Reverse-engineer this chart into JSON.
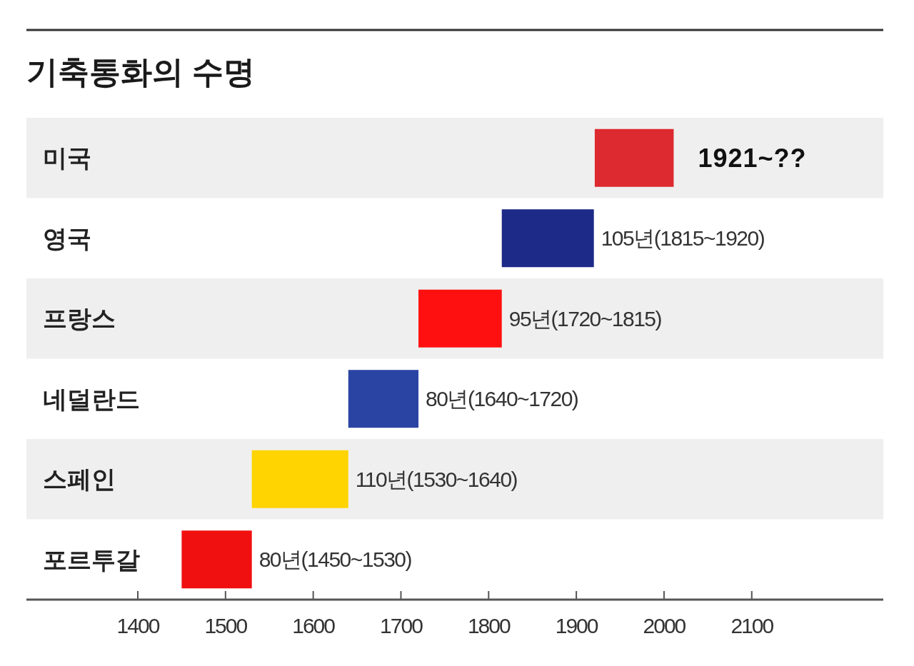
{
  "chart_data": {
    "type": "bar",
    "orientation": "horizontal",
    "title": "기축통화의 수명",
    "categories": [
      "미국",
      "영국",
      "프랑스",
      "네덜란드",
      "스페인",
      "포르투갈"
    ],
    "base": [
      1921,
      1815,
      1720,
      1640,
      1530,
      1450
    ],
    "values": [
      90,
      105,
      95,
      80,
      110,
      80
    ],
    "colors": [
      "#dd2a30",
      "#1d2a87",
      "#ff1010",
      "#2a44a3",
      "#ffd400",
      "#f01010"
    ],
    "value_labels": [
      null,
      "105년(1815~1920)",
      "95년(1720~1815)",
      "80년(1640~1720)",
      "110년(1530~1640)",
      "80년(1450~1530)"
    ],
    "annotations": [
      {
        "text": "1921~??",
        "x": 2011,
        "y": "미국"
      }
    ],
    "xlim": [
      1273,
      2250
    ],
    "xticks": [
      1400,
      1500,
      1600,
      1700,
      1800,
      1900,
      2000,
      2100
    ],
    "bands": [
      {
        "axis": "y",
        "from": "미국",
        "to": "미국",
        "color": "#efefef"
      },
      {
        "axis": "y",
        "from": "프랑스",
        "to": "프랑스",
        "color": "#efefef"
      },
      {
        "axis": "y",
        "from": "스페인",
        "to": "스페인",
        "color": "#efefef"
      }
    ]
  }
}
